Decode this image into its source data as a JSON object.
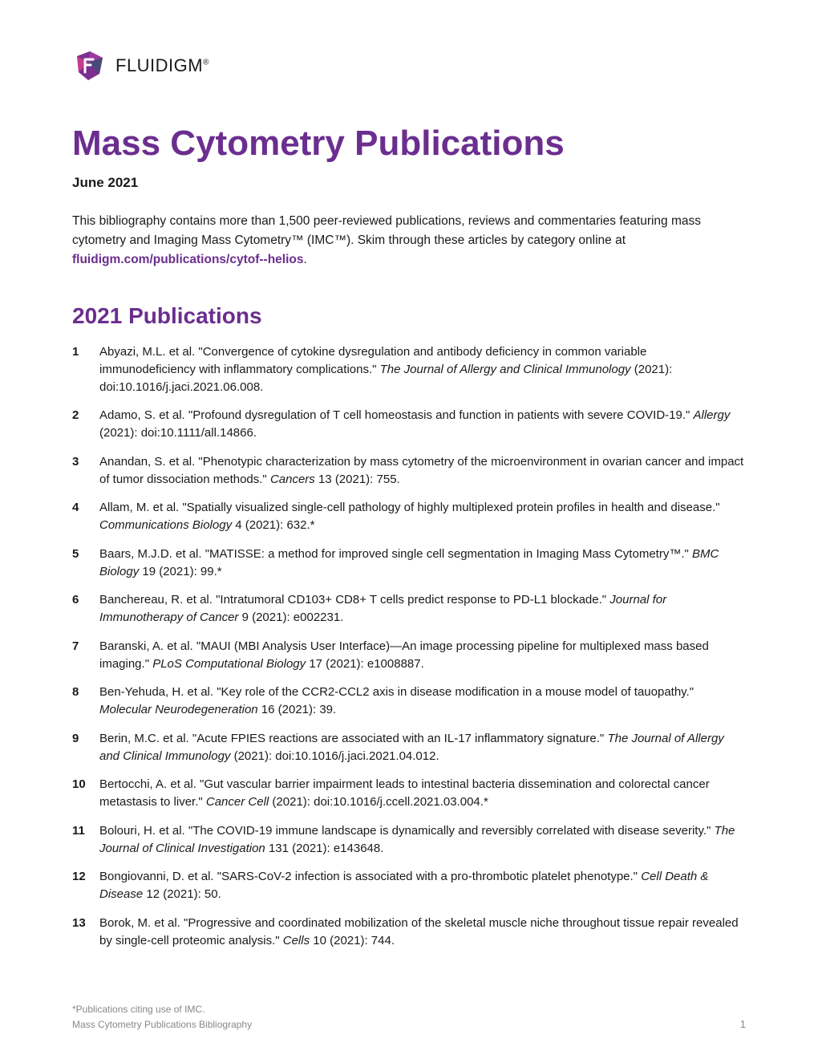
{
  "brand": {
    "name": "FLUIDIGM",
    "logo_colors": {
      "left": "#c73b8e",
      "right": "#7b2f8e",
      "edge": "#4a4a78"
    }
  },
  "title": "Mass Cytometry Publications",
  "title_color": "#6b2e8f",
  "date": "June 2021",
  "intro_prefix": "This bibliography contains more than 1,500 peer-reviewed publications, reviews and commentaries featuring mass cytometry and Imaging Mass Cytometry™ (IMC™). Skim through these articles by category online at ",
  "intro_link": "fluidigm.com/publications/cytof--helios",
  "intro_suffix": ".",
  "link_color": "#6b2e8f",
  "section_heading": "2021 Publications",
  "section_color": "#6b2e8f",
  "publications": [
    {
      "n": "1",
      "pre": "Abyazi, M.L. et al. \"Convergence of cytokine dysregulation and antibody deficiency in common variable immunodeficiency with inflammatory complications.\" ",
      "journal": "The Journal of Allergy and Clinical Immunology",
      "post": " (2021): doi:10.1016/j.jaci.2021.06.008."
    },
    {
      "n": "2",
      "pre": "Adamo, S. et al. \"Profound dysregulation of T cell homeostasis and function in patients with severe COVID-19.\" ",
      "journal": "Allergy",
      "post": " (2021): doi:10.1111/all.14866."
    },
    {
      "n": "3",
      "pre": "Anandan, S. et al. \"Phenotypic characterization by mass cytometry of the microenvironment in ovarian cancer and impact of tumor dissociation methods.\" ",
      "journal": "Cancers",
      "post": " 13 (2021): 755."
    },
    {
      "n": "4",
      "pre": "Allam, M. et al. \"Spatially visualized single-cell pathology of highly multiplexed protein profiles in health and disease.\" ",
      "journal": "Communications Biology",
      "post": " 4 (2021): 632.*"
    },
    {
      "n": "5",
      "pre": "Baars, M.J.D. et al. \"MATISSE: a method for improved single cell segmentation in Imaging Mass Cytometry™.\" ",
      "journal": "BMC Biology",
      "post": " 19 (2021): 99.*"
    },
    {
      "n": "6",
      "pre": "Banchereau, R. et al. \"Intratumoral CD103+ CD8+ T cells predict response to PD-L1 blockade.\" ",
      "journal": "Journal for Immunotherapy of Cancer",
      "post": " 9 (2021): e002231."
    },
    {
      "n": "7",
      "pre": "Baranski, A. et al. \"MAUI (MBI Analysis User Interface)—An image processing pipeline for multiplexed mass based imaging.\" ",
      "journal": "PLoS Computational Biology",
      "post": " 17 (2021): e1008887."
    },
    {
      "n": "8",
      "pre": "Ben-Yehuda, H. et al. \"Key role of the CCR2-CCL2 axis in disease modification in a mouse model of tauopathy.\" ",
      "journal": "Molecular Neurodegeneration",
      "post": " 16 (2021): 39."
    },
    {
      "n": "9",
      "pre": "Berin, M.C. et al. \"Acute FPIES reactions are associated with an IL-17 inflammatory signature.\" ",
      "journal": "The Journal of Allergy and Clinical Immunology",
      "post": " (2021): doi:10.1016/j.jaci.2021.04.012."
    },
    {
      "n": "10",
      "pre": "Bertocchi, A. et al. \"Gut vascular barrier impairment leads to intestinal bacteria dissemination and colorectal cancer metastasis to liver.\" ",
      "journal": "Cancer Cell",
      "post": " (2021): doi:10.1016/j.ccell.2021.03.004.*"
    },
    {
      "n": "11",
      "pre": "Bolouri, H. et al. \"The COVID-19 immune landscape is dynamically and reversibly correlated with disease severity.\" ",
      "journal": "The Journal of Clinical Investigation",
      "post": " 131 (2021): e143648."
    },
    {
      "n": "12",
      "pre": "Bongiovanni, D. et al. \"SARS-CoV-2 infection is associated with a pro-thrombotic platelet phenotype.\" ",
      "journal": "Cell Death & Disease",
      "post": " 12 (2021): 50."
    },
    {
      "n": "13",
      "pre": "Borok, M. et al. \"Progressive and coordinated mobilization of the skeletal muscle niche throughout tissue repair revealed by single-cell proteomic analysis.\" ",
      "journal": "Cells",
      "post": " 10 (2021): 744."
    }
  ],
  "footer_note": "*Publications citing use of IMC.",
  "footer_title": "Mass Cytometry Publications Bibliography",
  "page_number": "1",
  "text_color": "#1a1a1a",
  "footer_color": "#888888"
}
